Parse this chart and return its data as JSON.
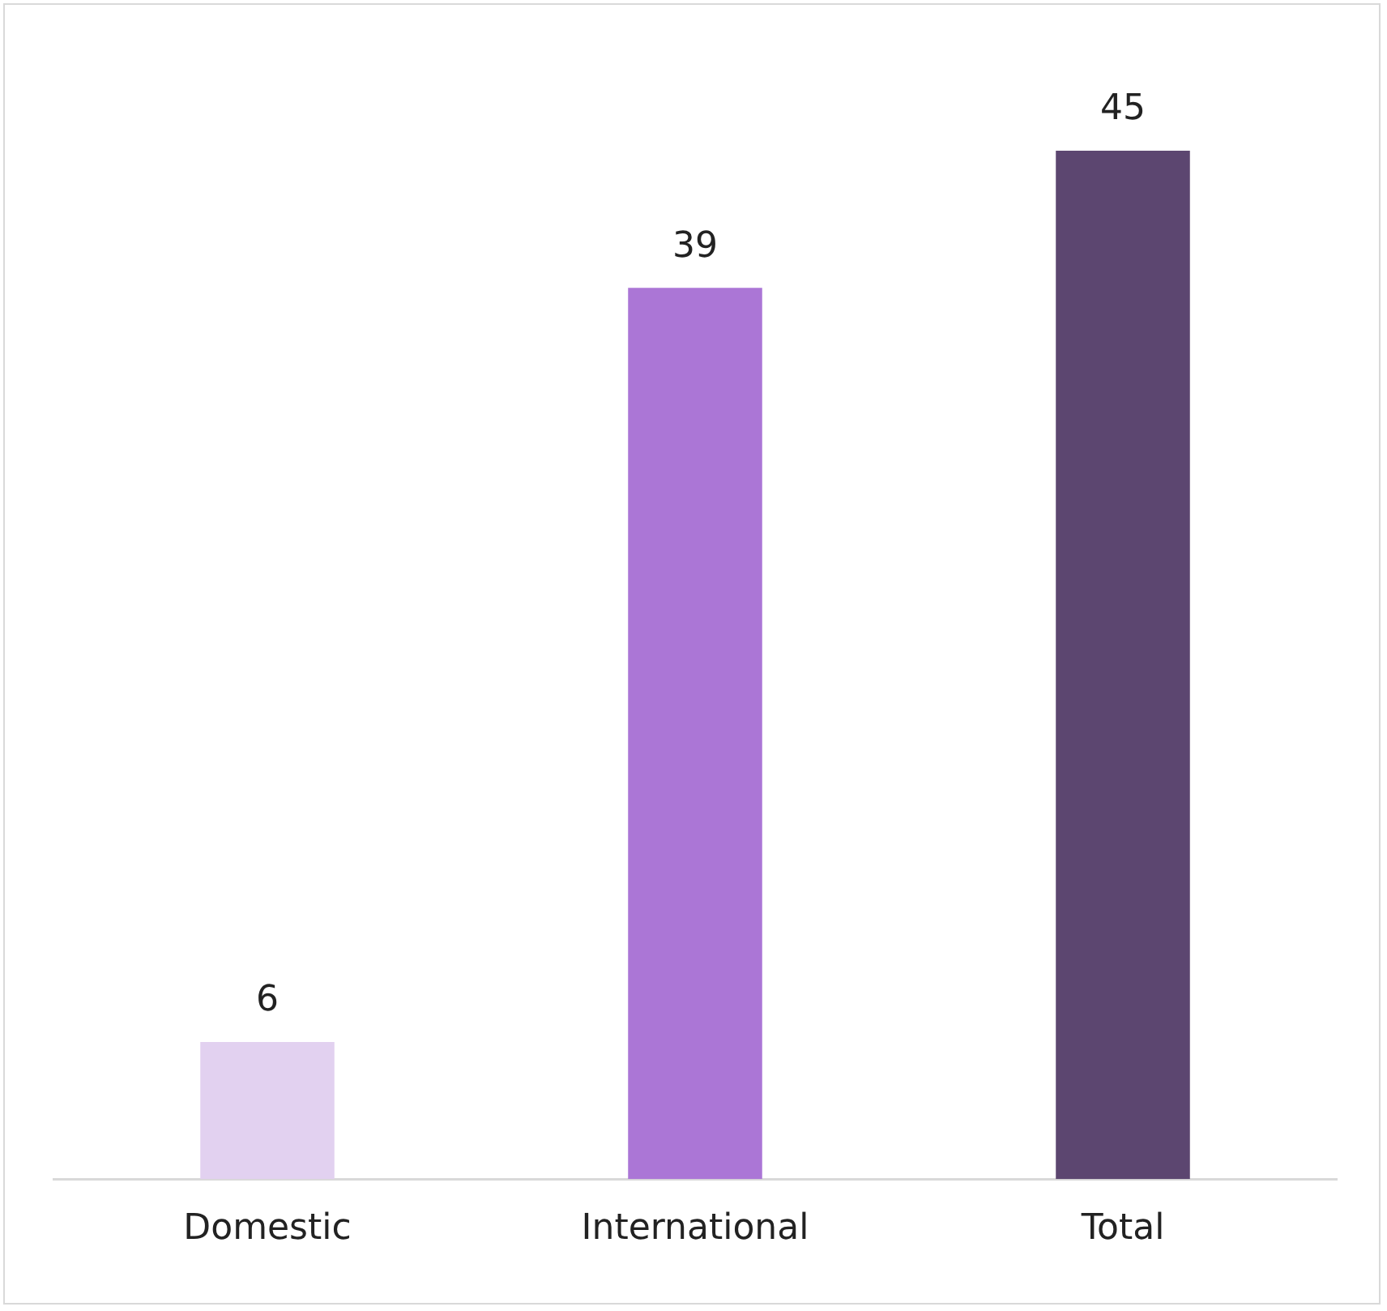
{
  "chart_data": {
    "type": "bar",
    "categories": [
      "Domestic",
      "International",
      "Total"
    ],
    "values": [
      6,
      39,
      45
    ],
    "colors": [
      "#e2d1f0",
      "#ab76d6",
      "#5c4670"
    ],
    "data_labels": true,
    "grid": false,
    "legend": false
  }
}
